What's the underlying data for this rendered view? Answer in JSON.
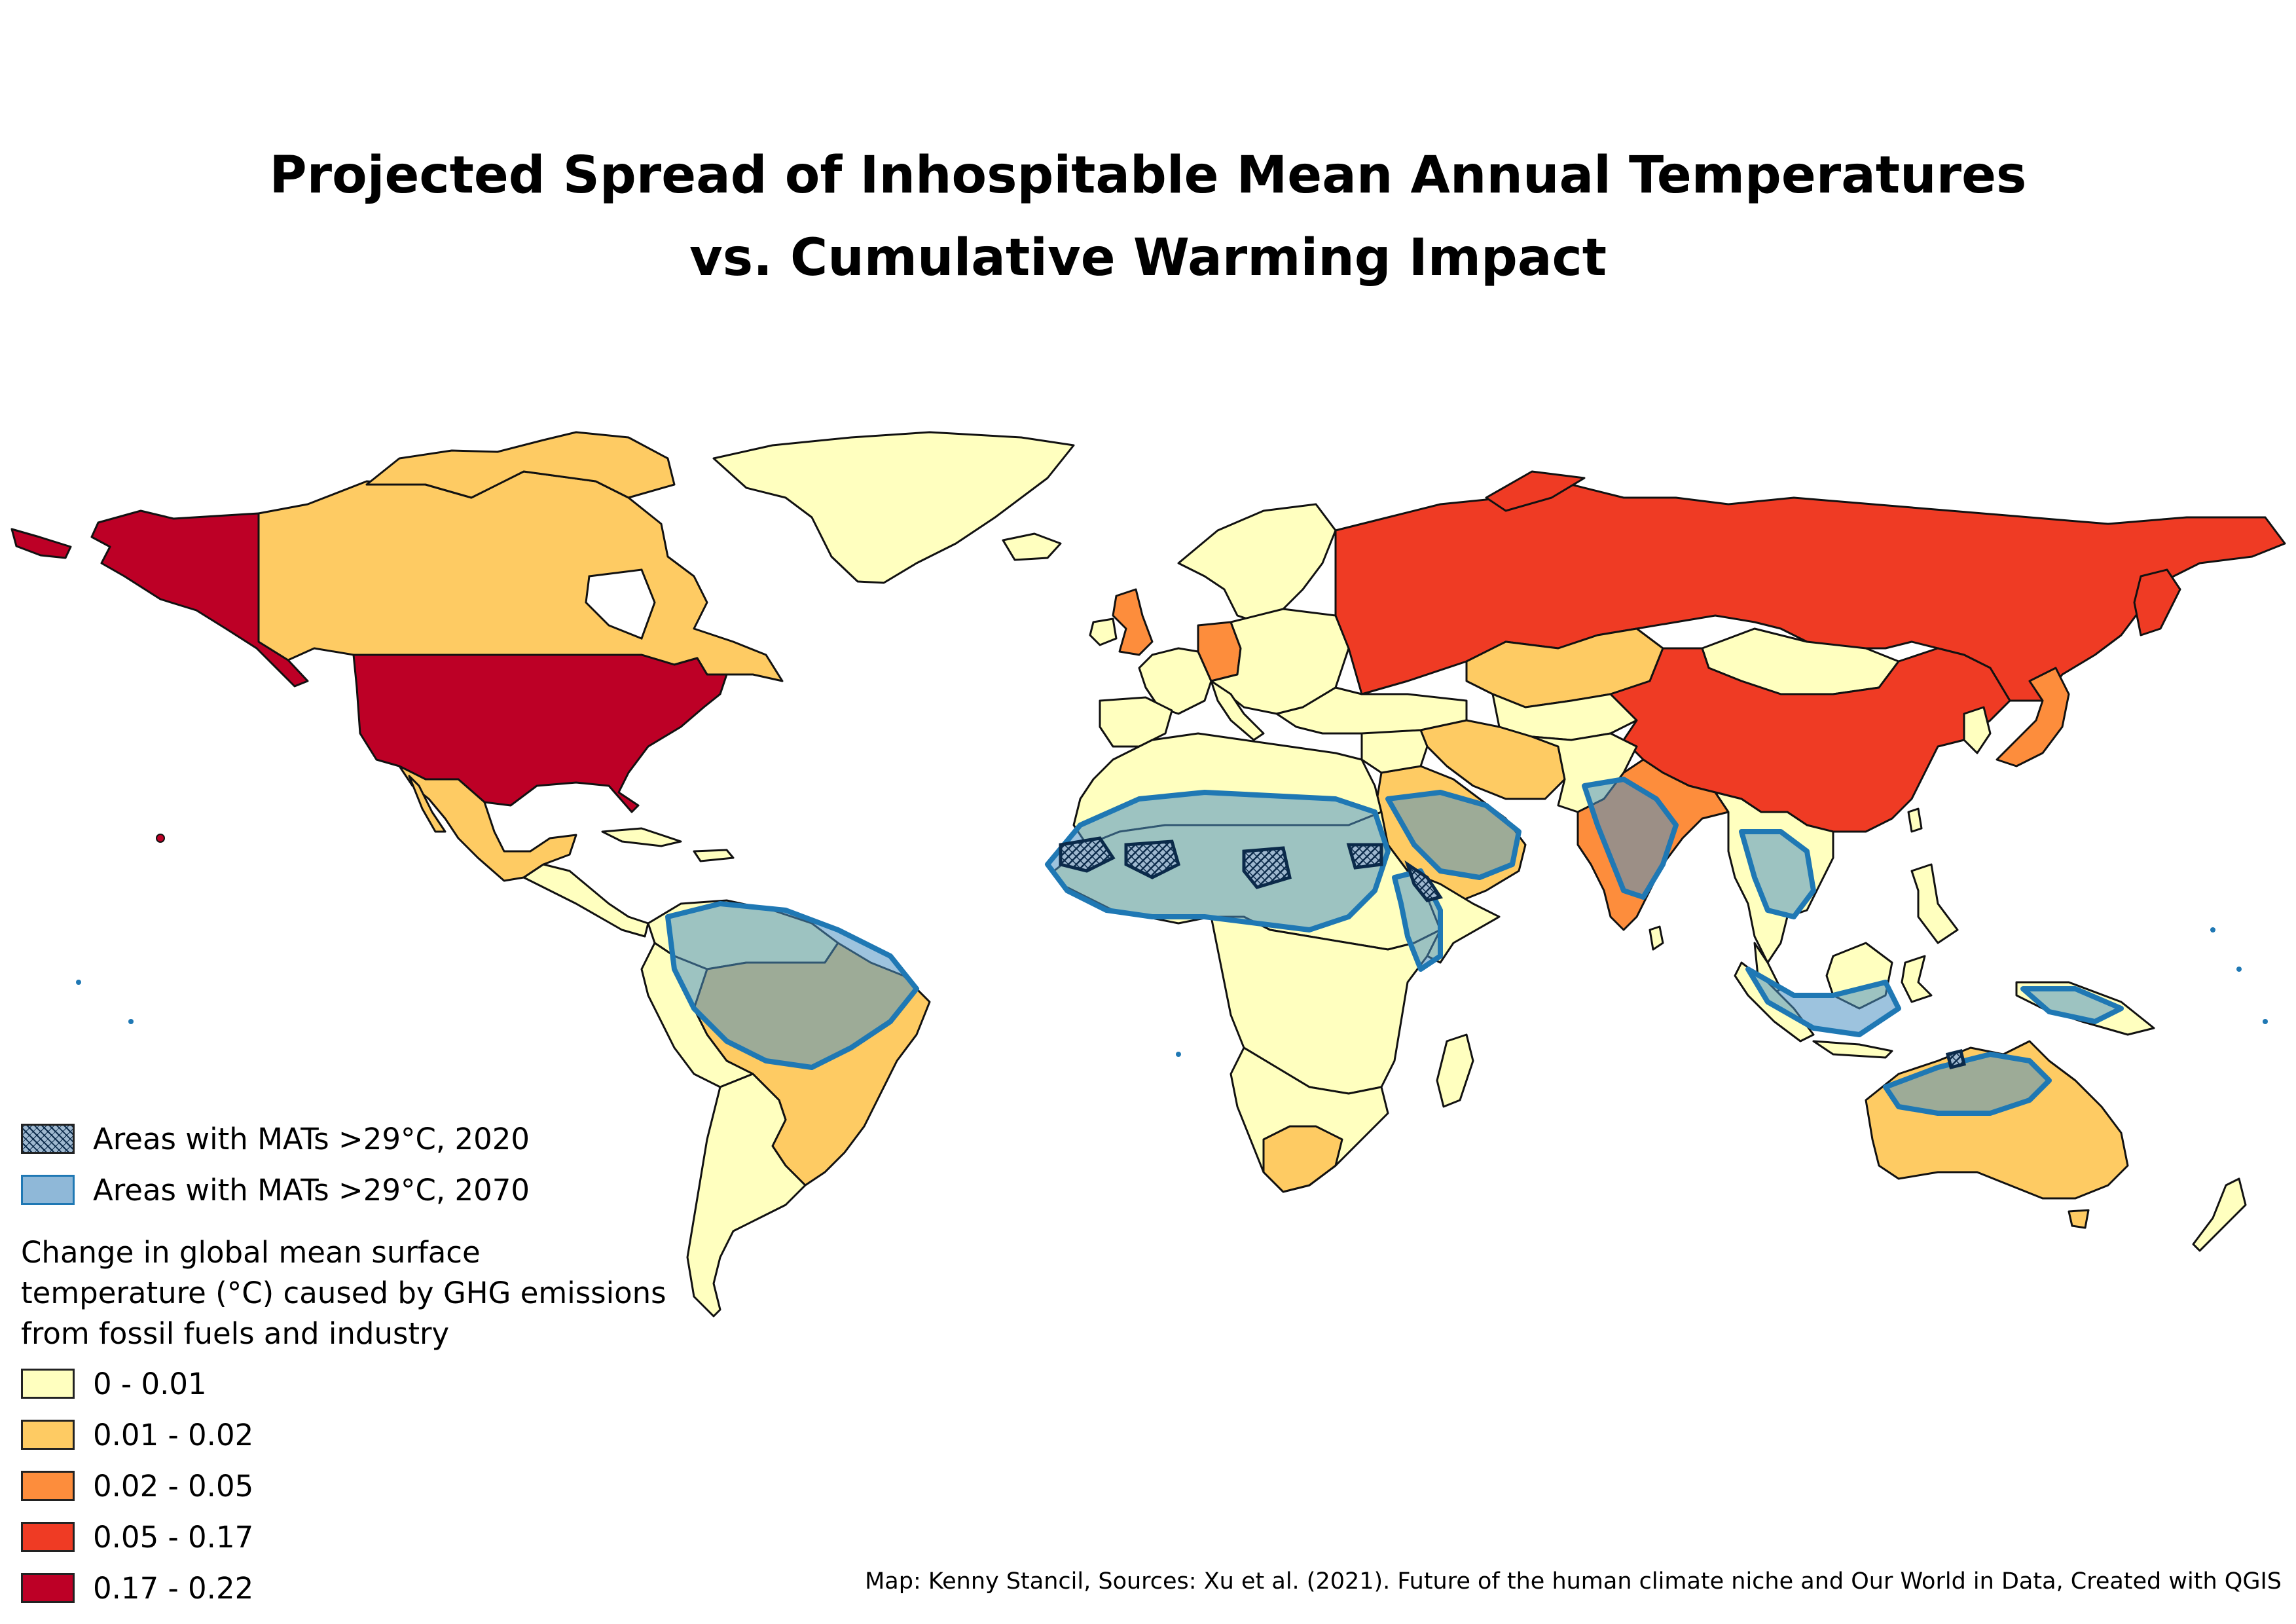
{
  "title": {
    "line1": "Projected Spread of Inhospitable Mean Annual Temperatures",
    "line2": "vs. Cumulative Warming Impact"
  },
  "legend": {
    "overlays": [
      {
        "label": "Areas with MATs >29°C, 2020",
        "style": "hatched",
        "color": "#9fb8cf"
      },
      {
        "label": "Areas with MATs >29°C, 2070",
        "style": "fill",
        "color": "#8fb8d8"
      }
    ],
    "title": "Change in global mean surface\ntemperature (°C) caused by GHG emissions\nfrom fossil fuels and industry",
    "classes": [
      {
        "label": "0 - 0.01",
        "color": "#ffffbf"
      },
      {
        "label": "0.01 - 0.02",
        "color": "#fecb63"
      },
      {
        "label": "0.02 - 0.05",
        "color": "#fd8d3c"
      },
      {
        "label": "0.05 - 0.17",
        "color": "#ef3b24"
      },
      {
        "label": "0.17 - 0.22",
        "color": "#bd0026"
      }
    ]
  },
  "map_data": {
    "regions": [
      {
        "name": "United States",
        "class": "0.17 - 0.22"
      },
      {
        "name": "Alaska",
        "class": "0.17 - 0.22"
      },
      {
        "name": "Russia",
        "class": "0.05 - 0.17"
      },
      {
        "name": "China",
        "class": "0.05 - 0.17"
      },
      {
        "name": "Canada",
        "class": "0.01 - 0.02"
      },
      {
        "name": "Greenland",
        "class": "0 - 0.01"
      },
      {
        "name": "Mexico",
        "class": "0.01 - 0.02"
      },
      {
        "name": "Brazil",
        "class": "0.01 - 0.02"
      },
      {
        "name": "Australia",
        "class": "0.01 - 0.02"
      },
      {
        "name": "India",
        "class": "0.02 - 0.05"
      },
      {
        "name": "Japan",
        "class": "0.02 - 0.05"
      },
      {
        "name": "Germany",
        "class": "0.02 - 0.05"
      },
      {
        "name": "United Kingdom",
        "class": "0.02 - 0.05"
      },
      {
        "name": "Kazakhstan",
        "class": "0.01 - 0.02"
      },
      {
        "name": "Iran",
        "class": "0.01 - 0.02"
      },
      {
        "name": "Saudi Arabia",
        "class": "0.01 - 0.02"
      },
      {
        "name": "South Africa",
        "class": "0.01 - 0.02"
      },
      {
        "name": "Mongolia",
        "class": "0 - 0.01"
      }
    ]
  },
  "credit": "Map: Kenny Stancil, Sources: Xu et al. (2021). Future of the human climate niche and Our World in Data, Created with QGIS"
}
